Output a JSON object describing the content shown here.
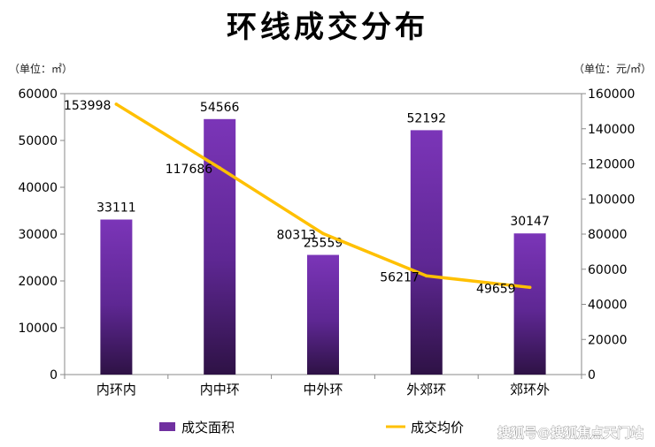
{
  "chart_data": {
    "type": "bar",
    "title": "环线成交分布",
    "left_unit": "（单位：㎡）",
    "right_unit": "（单位：元/㎡）",
    "categories": [
      "内环内",
      "内中环",
      "中外环",
      "外郊环",
      "郊环外"
    ],
    "series": [
      {
        "name": "成交面积",
        "type": "bar",
        "axis": "left",
        "color": "#7030a0",
        "values": [
          33111,
          54566,
          25559,
          52192,
          30147
        ],
        "labels": [
          "33111",
          "54566",
          "25559",
          "52192",
          "30147"
        ]
      },
      {
        "name": "成交均价",
        "type": "line",
        "axis": "right",
        "color": "#ffc000",
        "values": [
          153998,
          117686,
          80313,
          56217,
          49659
        ],
        "labels": [
          "153998",
          "117686",
          "80313",
          "56217",
          "49659"
        ]
      }
    ],
    "ylim_left": [
      0,
      60000
    ],
    "ylim_right": [
      0,
      160000
    ],
    "left_ticks": [
      "0",
      "10000",
      "20000",
      "30000",
      "40000",
      "50000",
      "60000"
    ],
    "right_ticks": [
      "0",
      "20000",
      "40000",
      "60000",
      "80000",
      "100000",
      "120000",
      "140000",
      "160000"
    ],
    "grid": false,
    "legend_position": "bottom"
  },
  "watermark": "搜狐号@搜狐焦点天门站"
}
